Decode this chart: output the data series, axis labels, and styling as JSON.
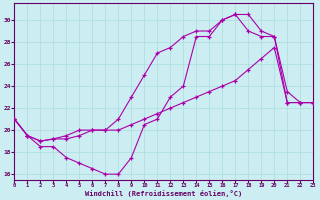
{
  "bg_color": "#cceef2",
  "line_color": "#aa00aa",
  "grid_color": "#aadddd",
  "spine_color": "#660066",
  "xlabel": "Windchill (Refroidissement éolien,°C)",
  "xlim": [
    0,
    23
  ],
  "ylim": [
    15.5,
    31.5
  ],
  "xticks": [
    0,
    1,
    2,
    3,
    4,
    5,
    6,
    7,
    8,
    9,
    10,
    11,
    12,
    13,
    14,
    15,
    16,
    17,
    18,
    19,
    20,
    21,
    22,
    23
  ],
  "yticks": [
    16,
    18,
    20,
    22,
    24,
    26,
    28,
    30
  ],
  "line1_x": [
    0,
    1,
    2,
    3,
    4,
    5,
    6,
    7,
    8,
    9,
    10,
    11,
    12,
    13,
    14,
    15,
    16,
    17,
    18,
    19,
    20,
    21,
    22,
    23
  ],
  "line1_y": [
    21.0,
    19.5,
    18.5,
    18.5,
    17.5,
    17.0,
    16.5,
    16.0,
    16.0,
    17.5,
    20.5,
    21.0,
    23.0,
    24.0,
    28.5,
    28.5,
    30.0,
    30.5,
    30.5,
    29.0,
    28.5,
    23.5,
    22.5,
    22.5
  ],
  "line2_x": [
    0,
    1,
    2,
    3,
    4,
    5,
    6,
    7,
    8,
    9,
    10,
    11,
    12,
    13,
    14,
    15,
    16,
    17,
    18,
    19,
    20,
    21,
    22,
    23
  ],
  "line2_y": [
    21.0,
    19.5,
    19.0,
    19.2,
    19.2,
    19.5,
    20.0,
    20.0,
    21.0,
    23.0,
    25.0,
    27.0,
    27.5,
    28.5,
    29.0,
    29.0,
    30.0,
    30.5,
    29.0,
    28.5,
    28.5,
    22.5,
    22.5,
    22.5
  ],
  "line3_x": [
    0,
    1,
    2,
    3,
    4,
    5,
    6,
    7,
    8,
    9,
    10,
    11,
    12,
    13,
    14,
    15,
    16,
    17,
    18,
    19,
    20,
    21,
    22,
    23
  ],
  "line3_y": [
    21.0,
    19.5,
    19.0,
    19.2,
    19.5,
    20.0,
    20.0,
    20.0,
    20.0,
    20.5,
    21.0,
    21.5,
    22.0,
    22.5,
    23.0,
    23.5,
    24.0,
    24.5,
    25.5,
    26.5,
    27.5,
    22.5,
    22.5,
    22.5
  ]
}
